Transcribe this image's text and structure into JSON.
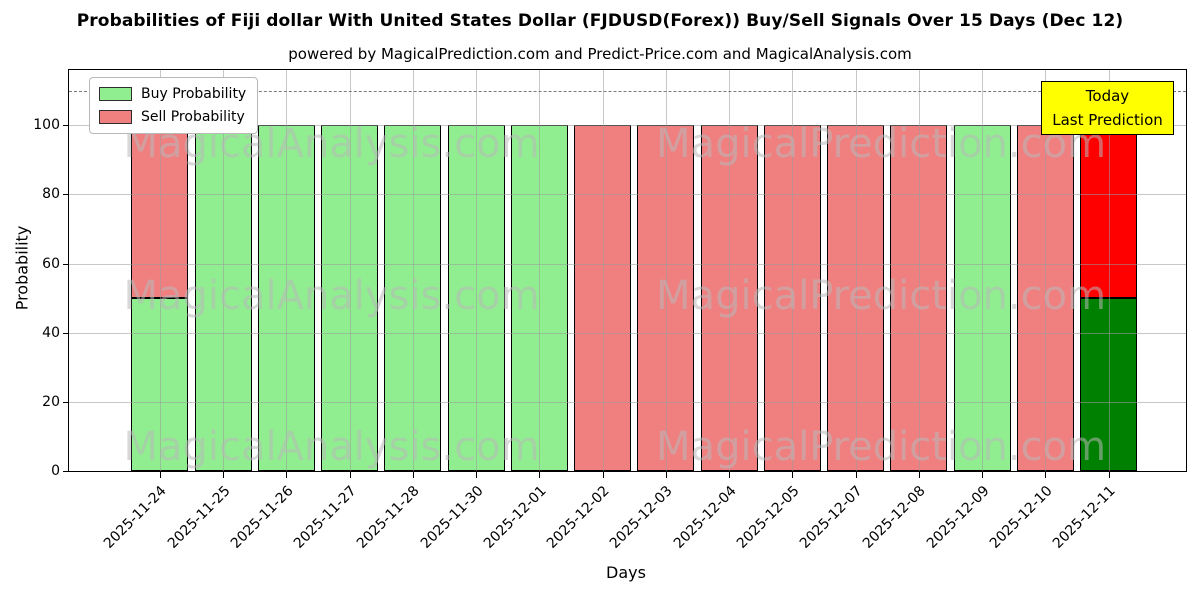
{
  "header": {
    "title": "Probabilities of Fiji dollar With United States Dollar (FJDUSD(Forex)) Buy/Sell Signals Over 15 Days (Dec 12)",
    "subtitle": "powered by MagicalPrediction.com and Predict-Price.com and MagicalAnalysis.com"
  },
  "chart_data": {
    "type": "bar",
    "stacked": true,
    "title": "Probabilities of Fiji dollar With United States Dollar (FJDUSD(Forex)) Buy/Sell Signals Over 15 Days (Dec 12)",
    "xlabel": "Days",
    "ylabel": "Probability",
    "ylim": [
      0,
      116
    ],
    "yticks": [
      0,
      20,
      40,
      60,
      80,
      100
    ],
    "grid": true,
    "dashed_line_y": 110,
    "legend_position": "upper left",
    "categories": [
      "2025-11-24",
      "2025-11-25",
      "2025-11-26",
      "2025-11-27",
      "2025-11-28",
      "2025-11-30",
      "2025-12-01",
      "2025-12-02",
      "2025-12-03",
      "2025-12-04",
      "2025-12-05",
      "2025-12-07",
      "2025-12-08",
      "2025-12-09",
      "2025-12-10",
      "2025-12-11"
    ],
    "series": [
      {
        "name": "Buy Probability",
        "color": "#90ee90",
        "values": [
          50,
          100,
          100,
          100,
          100,
          100,
          100,
          0,
          0,
          0,
          0,
          0,
          0,
          100,
          0,
          50
        ]
      },
      {
        "name": "Sell Probability",
        "color": "#f08080",
        "values": [
          50,
          0,
          0,
          0,
          0,
          0,
          0,
          100,
          100,
          100,
          100,
          100,
          100,
          0,
          100,
          50
        ]
      }
    ],
    "today": {
      "index": 15,
      "buy_color": "#008000",
      "sell_color": "#ff0000"
    }
  },
  "legend": {
    "items": [
      {
        "label": "Buy Probability",
        "swatch": "#90ee90"
      },
      {
        "label": "Sell Probability",
        "swatch": "#f08080"
      }
    ]
  },
  "today_box": {
    "line1": "Today",
    "line2": "Last Prediction",
    "bg_color": "#ffff00",
    "border_color": "#000000"
  },
  "watermarks": {
    "left_text": "MagicalAnalysis.com",
    "right_text": "MagicalPrediction.com"
  }
}
